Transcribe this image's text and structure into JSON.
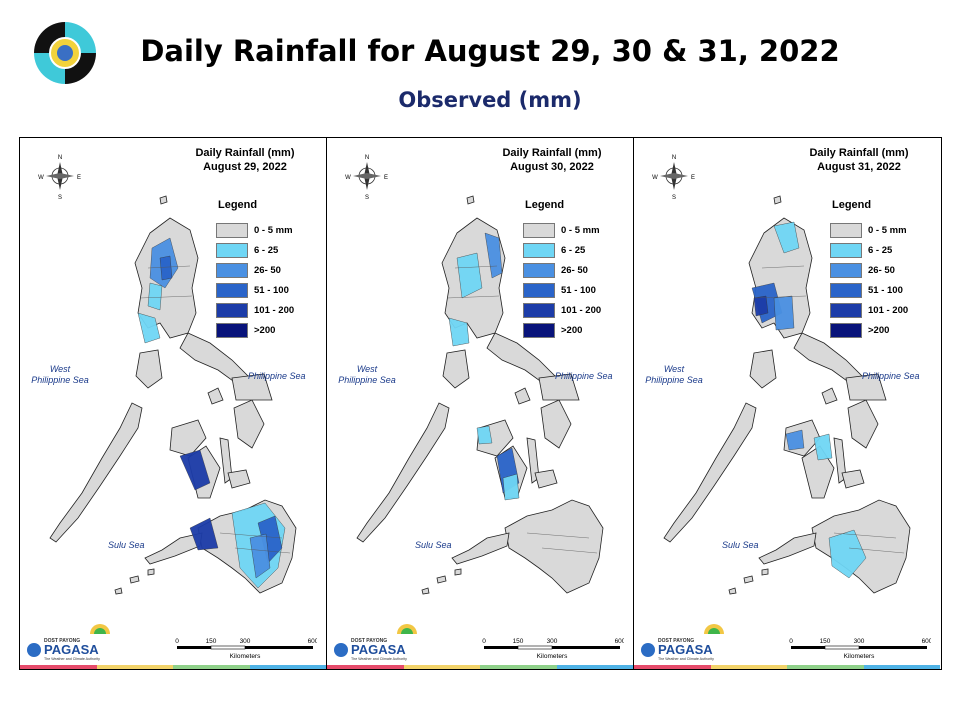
{
  "title": "Daily Rainfall for August 29, 30 & 31, 2022",
  "subtitle": "Observed (mm)",
  "legend": {
    "title": "Legend",
    "items": [
      {
        "label": "0 - 5 mm",
        "color": "#d9d9d9"
      },
      {
        "label": "6 - 25",
        "color": "#6fd6f5"
      },
      {
        "label": "26- 50",
        "color": "#4a90e2"
      },
      {
        "label": "51 - 100",
        "color": "#2a64c9"
      },
      {
        "label": "101 - 200",
        "color": "#1c3ca8"
      },
      {
        "label": ">200",
        "color": "#08137a"
      }
    ]
  },
  "panels": [
    {
      "title_line1": "Daily Rainfall (mm)",
      "title_line2": "August 29, 2022"
    },
    {
      "title_line1": "Daily Rainfall (mm)",
      "title_line2": "August 30, 2022"
    },
    {
      "title_line1": "Daily Rainfall (mm)",
      "title_line2": "August 31, 2022"
    }
  ],
  "seas": {
    "west_line1": "West",
    "west_line2": "Philippine Sea",
    "east": "Philippine Sea",
    "south": "Sulu Sea"
  },
  "compass": {
    "n": "N",
    "s": "S",
    "e": "E",
    "w": "W"
  },
  "scale": {
    "ticks": [
      "0",
      "150",
      "300",
      "600"
    ],
    "unit": "Kilometers"
  },
  "brand": {
    "name": "PAGASA",
    "top_text": "DOST PAYONG",
    "tagline": "The Weather and Climate Authority"
  },
  "stripe_colors": [
    "#e64b6b",
    "#f2d36a",
    "#8fd18a",
    "#4fb3e6"
  ]
}
